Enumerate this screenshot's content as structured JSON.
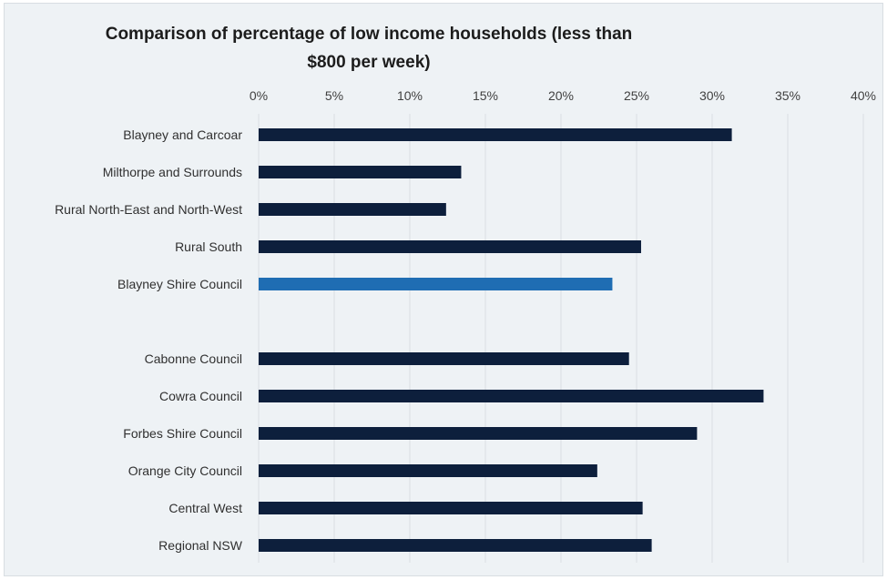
{
  "chart_data": {
    "type": "bar",
    "orientation": "horizontal",
    "title": "Comparison of percentage of low income households (less than $800 per week)",
    "xlim": [
      0,
      40
    ],
    "x_ticks": [
      "0%",
      "5%",
      "10%",
      "15%",
      "20%",
      "25%",
      "30%",
      "35%",
      "40%"
    ],
    "x_axis_position": "top",
    "grid": true,
    "categories": [
      "Blayney and Carcoar",
      "Milthorpe and Surrounds",
      "Rural North-East and North-West",
      "Rural South",
      "Blayney Shire Council",
      "",
      "Cabonne Council",
      "Cowra Council",
      "Forbes Shire Council",
      "Orange City Council",
      "Central West",
      "Regional NSW"
    ],
    "values": [
      31.3,
      13.4,
      12.4,
      25.3,
      23.4,
      null,
      24.5,
      33.4,
      29.0,
      22.4,
      25.4,
      26.0
    ],
    "colors": {
      "default": "#0d1f3c",
      "highlight": "#1f6db3",
      "highlight_category": "Blayney Shire Council",
      "gridline": "#d9dde2",
      "background": "#eef2f5"
    }
  }
}
